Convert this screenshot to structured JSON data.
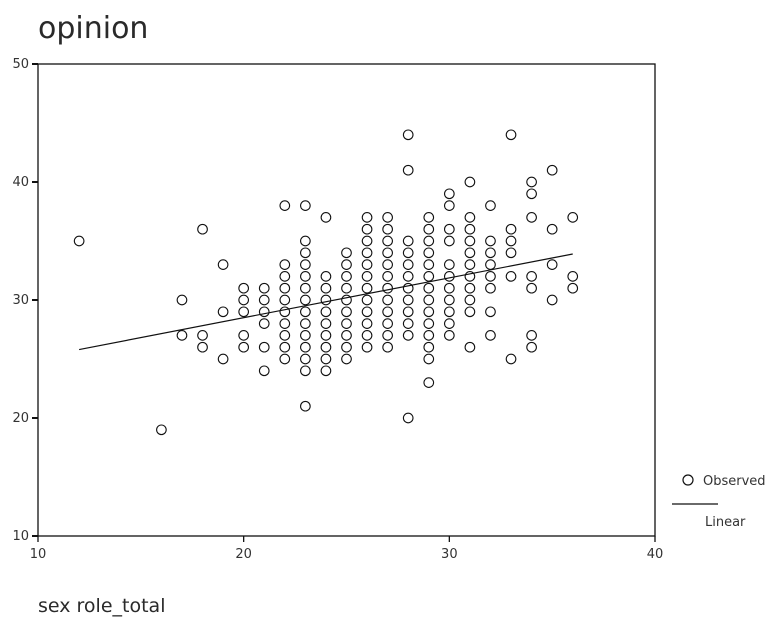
{
  "chart_data": {
    "type": "scatter",
    "title": "opinion",
    "xlabel": "sex role_total",
    "ylabel": "",
    "xlim": [
      10,
      40
    ],
    "ylim": [
      10,
      50
    ],
    "x_ticks": [
      "10",
      "20",
      "30",
      "40"
    ],
    "y_ticks": [
      "10",
      "20",
      "30",
      "40",
      "50"
    ],
    "grid": false,
    "legend_position": "right",
    "legend": {
      "observed": "Observed",
      "linear": "Linear"
    },
    "observed": [
      [
        12,
        35
      ],
      [
        16,
        19
      ],
      [
        17,
        30
      ],
      [
        17,
        27
      ],
      [
        18,
        36
      ],
      [
        18,
        27
      ],
      [
        18,
        26
      ],
      [
        19,
        33
      ],
      [
        19,
        29
      ],
      [
        19,
        25
      ],
      [
        20,
        31
      ],
      [
        20,
        30
      ],
      [
        20,
        29
      ],
      [
        20,
        27
      ],
      [
        20,
        26
      ],
      [
        21,
        31
      ],
      [
        21,
        30
      ],
      [
        21,
        29
      ],
      [
        21,
        28
      ],
      [
        21,
        26
      ],
      [
        21,
        24
      ],
      [
        22,
        38
      ],
      [
        22,
        33
      ],
      [
        22,
        32
      ],
      [
        22,
        31
      ],
      [
        22,
        30
      ],
      [
        22,
        29
      ],
      [
        22,
        28
      ],
      [
        22,
        27
      ],
      [
        22,
        26
      ],
      [
        22,
        25
      ],
      [
        23,
        38
      ],
      [
        23,
        35
      ],
      [
        23,
        34
      ],
      [
        23,
        33
      ],
      [
        23,
        32
      ],
      [
        23,
        31
      ],
      [
        23,
        30
      ],
      [
        23,
        29
      ],
      [
        23,
        28
      ],
      [
        23,
        27
      ],
      [
        23,
        26
      ],
      [
        23,
        25
      ],
      [
        23,
        24
      ],
      [
        23,
        21
      ],
      [
        24,
        37
      ],
      [
        24,
        32
      ],
      [
        24,
        31
      ],
      [
        24,
        30
      ],
      [
        24,
        29
      ],
      [
        24,
        28
      ],
      [
        24,
        27
      ],
      [
        24,
        26
      ],
      [
        24,
        25
      ],
      [
        24,
        24
      ],
      [
        25,
        34
      ],
      [
        25,
        33
      ],
      [
        25,
        32
      ],
      [
        25,
        31
      ],
      [
        25,
        30
      ],
      [
        25,
        29
      ],
      [
        25,
        28
      ],
      [
        25,
        27
      ],
      [
        25,
        26
      ],
      [
        25,
        25
      ],
      [
        26,
        37
      ],
      [
        26,
        36
      ],
      [
        26,
        35
      ],
      [
        26,
        34
      ],
      [
        26,
        33
      ],
      [
        26,
        32
      ],
      [
        26,
        31
      ],
      [
        26,
        30
      ],
      [
        26,
        29
      ],
      [
        26,
        28
      ],
      [
        26,
        27
      ],
      [
        26,
        26
      ],
      [
        27,
        37
      ],
      [
        27,
        36
      ],
      [
        27,
        35
      ],
      [
        27,
        34
      ],
      [
        27,
        33
      ],
      [
        27,
        32
      ],
      [
        27,
        31
      ],
      [
        27,
        30
      ],
      [
        27,
        29
      ],
      [
        27,
        28
      ],
      [
        27,
        27
      ],
      [
        27,
        26
      ],
      [
        28,
        44
      ],
      [
        28,
        41
      ],
      [
        28,
        35
      ],
      [
        28,
        34
      ],
      [
        28,
        33
      ],
      [
        28,
        32
      ],
      [
        28,
        31
      ],
      [
        28,
        30
      ],
      [
        28,
        29
      ],
      [
        28,
        28
      ],
      [
        28,
        27
      ],
      [
        28,
        20
      ],
      [
        29,
        37
      ],
      [
        29,
        36
      ],
      [
        29,
        35
      ],
      [
        29,
        34
      ],
      [
        29,
        33
      ],
      [
        29,
        32
      ],
      [
        29,
        31
      ],
      [
        29,
        30
      ],
      [
        29,
        29
      ],
      [
        29,
        28
      ],
      [
        29,
        27
      ],
      [
        29,
        26
      ],
      [
        29,
        25
      ],
      [
        29,
        23
      ],
      [
        30,
        39
      ],
      [
        30,
        38
      ],
      [
        30,
        36
      ],
      [
        30,
        35
      ],
      [
        30,
        33
      ],
      [
        30,
        32
      ],
      [
        30,
        31
      ],
      [
        30,
        30
      ],
      [
        30,
        29
      ],
      [
        30,
        28
      ],
      [
        30,
        27
      ],
      [
        31,
        40
      ],
      [
        31,
        37
      ],
      [
        31,
        36
      ],
      [
        31,
        35
      ],
      [
        31,
        34
      ],
      [
        31,
        33
      ],
      [
        31,
        32
      ],
      [
        31,
        31
      ],
      [
        31,
        30
      ],
      [
        31,
        29
      ],
      [
        31,
        26
      ],
      [
        32,
        38
      ],
      [
        32,
        35
      ],
      [
        32,
        34
      ],
      [
        32,
        33
      ],
      [
        32,
        32
      ],
      [
        32,
        31
      ],
      [
        32,
        29
      ],
      [
        32,
        27
      ],
      [
        33,
        44
      ],
      [
        33,
        36
      ],
      [
        33,
        35
      ],
      [
        33,
        34
      ],
      [
        33,
        32
      ],
      [
        33,
        25
      ],
      [
        34,
        40
      ],
      [
        34,
        39
      ],
      [
        34,
        37
      ],
      [
        34,
        32
      ],
      [
        34,
        31
      ],
      [
        34,
        27
      ],
      [
        34,
        26
      ],
      [
        35,
        41
      ],
      [
        35,
        36
      ],
      [
        35,
        33
      ],
      [
        35,
        30
      ],
      [
        36,
        37
      ],
      [
        36,
        32
      ],
      [
        36,
        31
      ]
    ],
    "linear_fit": {
      "x": [
        12,
        36
      ],
      "y": [
        25.8,
        33.9
      ]
    }
  }
}
